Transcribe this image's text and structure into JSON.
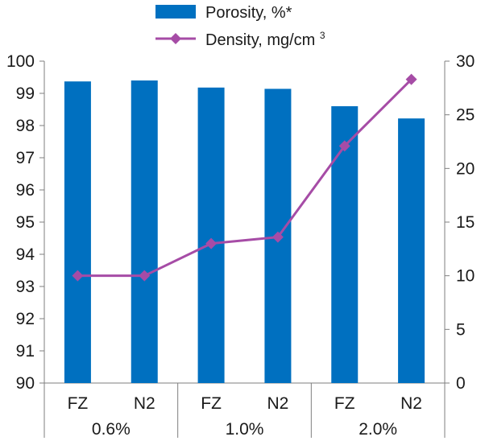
{
  "chart_data": {
    "type": "bar",
    "categories": [
      "FZ",
      "N2",
      "FZ",
      "N2",
      "FZ",
      "N2"
    ],
    "groups": [
      "0.6%",
      "1.0%",
      "2.0%"
    ],
    "series": [
      {
        "name": "Porosity, %*",
        "kind": "bar",
        "axis": "left",
        "color": "#0070c0",
        "values": [
          99.37,
          99.4,
          99.18,
          99.14,
          98.6,
          98.22
        ]
      },
      {
        "name": "Density, mg/cm",
        "superscript": "3",
        "kind": "line",
        "axis": "right",
        "color": "#a64ca6",
        "values": [
          10.0,
          10.0,
          13.0,
          13.6,
          22.1,
          28.3
        ]
      }
    ],
    "y_left": {
      "ylim": [
        90,
        100
      ],
      "ticks": [
        "90",
        "91",
        "92",
        "93",
        "94",
        "95",
        "96",
        "97",
        "98",
        "99",
        "100"
      ]
    },
    "y_right": {
      "ylim": [
        0,
        30
      ],
      "ticks": [
        "0",
        "5",
        "10",
        "15",
        "20",
        "25",
        "30"
      ]
    },
    "title": "",
    "xlabel": "",
    "legend_position": "top-center"
  }
}
